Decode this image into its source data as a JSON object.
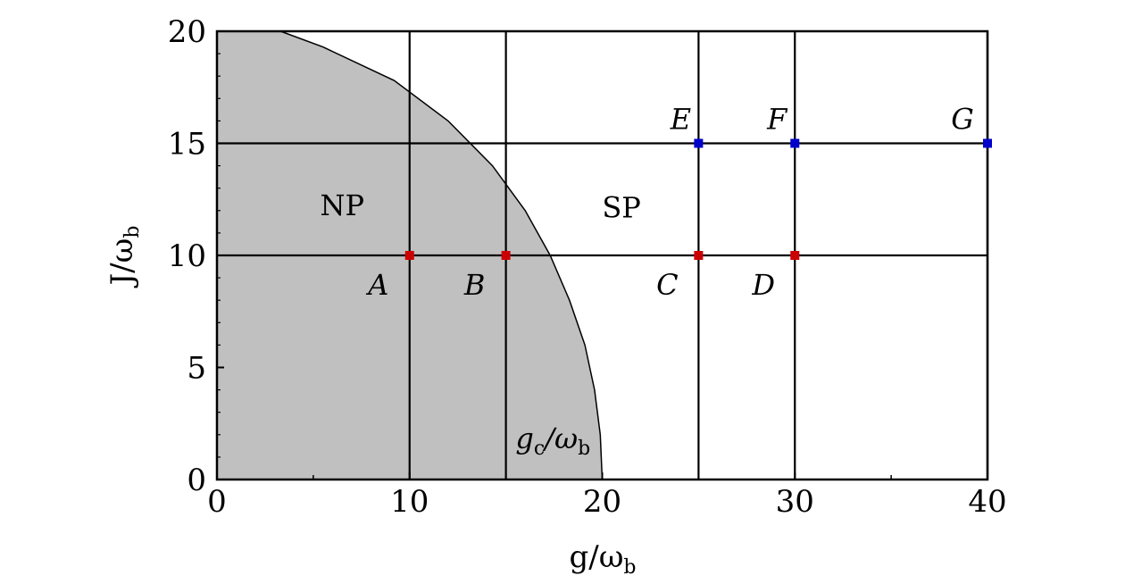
{
  "chart_data": {
    "type": "scatter",
    "title": "",
    "xlabel": "g/ω",
    "xlabel_sub": "b",
    "ylabel": "J/ω",
    "ylabel_sub": "b",
    "xlim": [
      0,
      40
    ],
    "ylim": [
      0,
      20
    ],
    "x_ticks": [
      0,
      10,
      20,
      30,
      40
    ],
    "y_ticks": [
      0,
      5,
      10,
      15,
      20
    ],
    "x_tick_labels": [
      "0",
      "10",
      "20",
      "30",
      "40"
    ],
    "y_tick_labels": [
      "0",
      "5",
      "10",
      "15",
      "20"
    ],
    "grid": false,
    "vertical_lines": [
      10,
      15,
      25,
      30,
      40
    ],
    "horizontal_lines": [
      10,
      15
    ],
    "boundary_curve": {
      "label": "g",
      "label_sub": "c",
      "label_suffix": "/ω",
      "label_suffix_sub": "b",
      "x": [
        20.0,
        19.9,
        19.6,
        19.1,
        18.3,
        17.3,
        16.0,
        14.3,
        12.0,
        9.2,
        5.5,
        3.3
      ],
      "y": [
        0,
        2,
        4,
        6,
        8,
        10,
        12,
        14,
        16,
        17.8,
        19.3,
        20
      ]
    },
    "regions": [
      {
        "label": "NP",
        "x": 6.5,
        "y": 11.8,
        "fill": "#c0c0c0"
      },
      {
        "label": "SP",
        "x": 21.0,
        "y": 11.7
      }
    ],
    "points": [
      {
        "label": "A",
        "x": 10,
        "y": 10,
        "color": "#cc0000"
      },
      {
        "label": "B",
        "x": 15,
        "y": 10,
        "color": "#cc0000"
      },
      {
        "label": "C",
        "x": 25,
        "y": 10,
        "color": "#cc0000"
      },
      {
        "label": "D",
        "x": 30,
        "y": 10,
        "color": "#cc0000"
      },
      {
        "label": "E",
        "x": 25,
        "y": 15,
        "color": "#0000cc"
      },
      {
        "label": "F",
        "x": 30,
        "y": 15,
        "color": "#0000cc"
      },
      {
        "label": "G",
        "x": 40,
        "y": 15,
        "color": "#0000cc"
      }
    ]
  }
}
